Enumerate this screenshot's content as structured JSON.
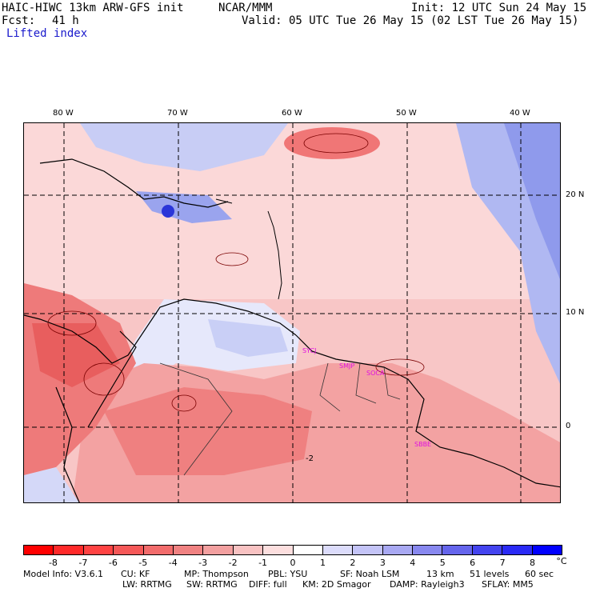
{
  "header": {
    "title": "HAIC-HIWC 13km ARW-GFS init",
    "org": "NCAR/MMM",
    "init": "Init: 12 UTC Sun 24 May 15",
    "fcst_label": "Fcst:",
    "fcst_value": "41 h",
    "valid": "Valid: 05 UTC Tue 26 May 15 (02 LST Tue 26 May 15)",
    "field": "Lifted index"
  },
  "map": {
    "lon_labels": [
      "80 W",
      "70 W",
      "60 W",
      "50 W",
      "40 W"
    ],
    "lat_labels": [
      "20 N",
      "10 N",
      "0"
    ],
    "stations": [
      "SYCJ",
      "SMJP",
      "SOCA",
      "SBBE"
    ],
    "contour_label": "-2"
  },
  "colorbar": {
    "levels": [
      "-8",
      "-7",
      "-6",
      "-5",
      "-4",
      "-3",
      "-2",
      "-1",
      "0",
      "1",
      "2",
      "3",
      "4",
      "5",
      "6",
      "7",
      "8"
    ],
    "unit": "°C",
    "colors": [
      "#ff0000",
      "#ff2a2a",
      "#ff4343",
      "#f55858",
      "#f26c6c",
      "#f08282",
      "#f3a0a0",
      "#f8c2c2",
      "#fcdede",
      "#ffffff",
      "#dcdcfb",
      "#c4c4f7",
      "#a9a9f3",
      "#8888ef",
      "#6565ec",
      "#4444ef",
      "#2a2af5",
      "#0000ff"
    ]
  },
  "footer": {
    "line1": [
      "Model Info: V3.6.1",
      "CU: KF",
      "MP: Thompson",
      "PBL: YSU",
      "SF: Noah LSM",
      "13 km",
      "51 levels",
      "60 sec"
    ],
    "line2": [
      "LW: RRTMG",
      "SW: RRTMG",
      "DIFF: full",
      "KM: 2D Smagor",
      "DAMP: Rayleigh3",
      "SFLAY: MM5"
    ]
  }
}
